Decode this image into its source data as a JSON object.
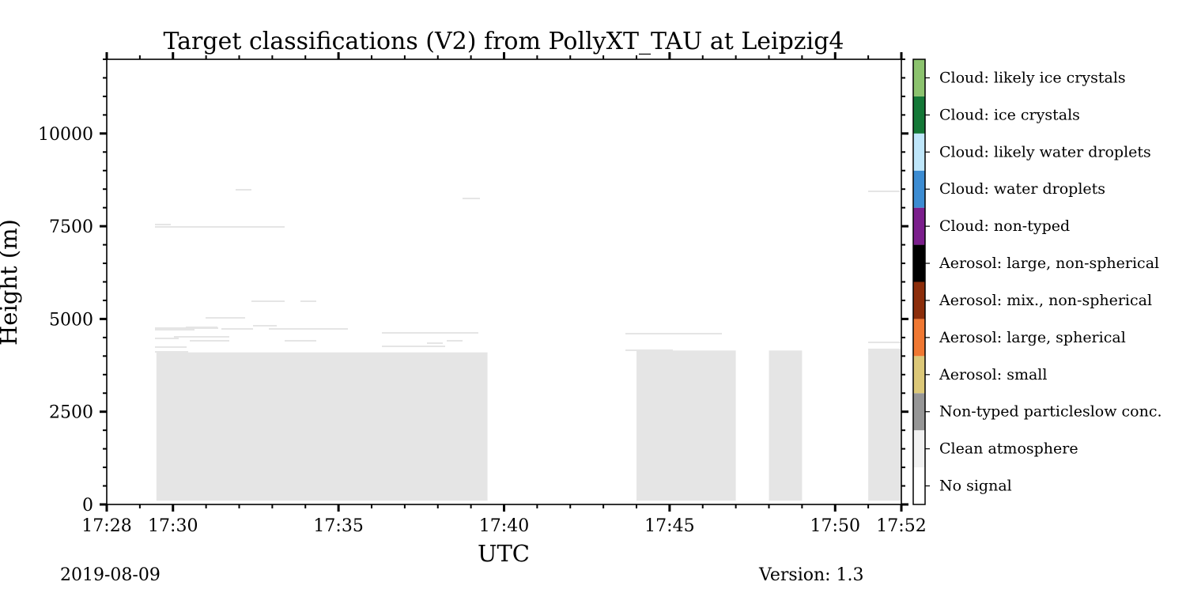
{
  "chart_data": {
    "type": "heatmap",
    "title": "Target classifications (V2) from PollyXT_TAU at Leipzig4",
    "xlabel": "UTC",
    "ylabel": "Height (m)",
    "x_range": [
      "17:28",
      "17:52"
    ],
    "ylim": [
      0,
      12000
    ],
    "x_ticks": [
      "17:28",
      "17:30",
      "17:35",
      "17:40",
      "17:45",
      "17:50",
      "17:52"
    ],
    "y_ticks": [
      "0",
      "2500",
      "5000",
      "7500",
      "10000"
    ],
    "classes": [
      {
        "label": "No signal",
        "color": "#ffffff"
      },
      {
        "label": "Clean atmosphere",
        "color": "#f2f2f2"
      },
      {
        "label": "Non-typed particleslow conc.",
        "color": "#969696"
      },
      {
        "label": "Aerosol: small",
        "color": "#dcc878"
      },
      {
        "label": "Aerosol: large, spherical",
        "color": "#f07832"
      },
      {
        "label": "Aerosol: mix., non-spherical",
        "color": "#8c2d0a"
      },
      {
        "label": "Aerosol: large, non-spherical",
        "color": "#000000"
      },
      {
        "label": "Cloud: non-typed",
        "color": "#7b1e8c"
      },
      {
        "label": "Cloud: water droplets",
        "color": "#3c8cd2"
      },
      {
        "label": "Cloud: likely water droplets",
        "color": "#bee6fa"
      },
      {
        "label": "Cloud: ice crystals",
        "color": "#147837"
      },
      {
        "label": "Cloud: likely ice crystals",
        "color": "#8cc36e"
      }
    ],
    "regions": [
      {
        "class": "Clean atmosphere",
        "x_start": "17:29:30",
        "x_end": "17:39:30",
        "y_bottom": 100,
        "y_top": 4100
      },
      {
        "class": "Clean atmosphere",
        "x_start": "17:44:00",
        "x_end": "17:47:00",
        "y_bottom": 100,
        "y_top": 4150
      },
      {
        "class": "Clean atmosphere",
        "x_start": "17:48:00",
        "x_end": "17:49:00",
        "y_bottom": 100,
        "y_top": 4150
      },
      {
        "class": "Clean atmosphere",
        "x_start": "17:51:00",
        "x_end": "17:52:00",
        "y_bottom": 100,
        "y_top": 4200
      }
    ],
    "date": "2019-08-09",
    "version": "Version: 1.3"
  }
}
